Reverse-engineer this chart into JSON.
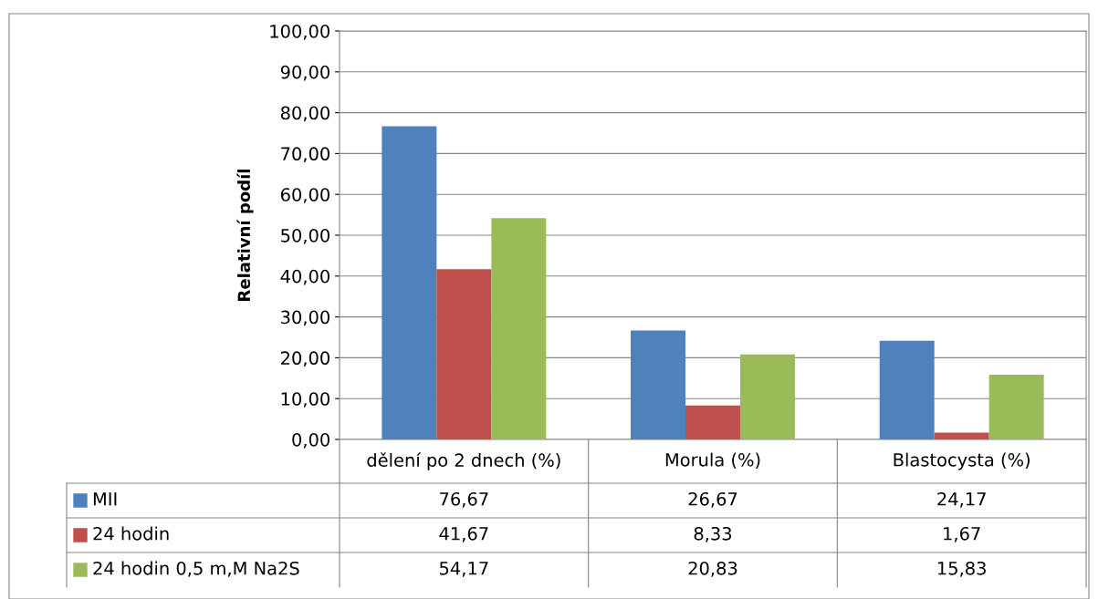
{
  "chart_data": {
    "type": "bar",
    "ylabel": "Relativní podíl",
    "categories": [
      "dělení po 2 dnech (%)",
      "Morula (%)",
      "Blastocysta (%)"
    ],
    "series": [
      {
        "name": "MII",
        "color": "#4f81bd",
        "values": [
          76.67,
          26.67,
          24.17
        ],
        "value_labels": [
          "76,67",
          "26,67",
          "24,17"
        ]
      },
      {
        "name": "24 hodin",
        "color": "#c0504d",
        "values": [
          41.67,
          8.33,
          1.67
        ],
        "value_labels": [
          "41,67",
          "8,33",
          "1,67"
        ]
      },
      {
        "name": "24 hodin 0,5 m,M Na2S",
        "color": "#9bbb59",
        "values": [
          54.17,
          20.83,
          15.83
        ],
        "value_labels": [
          "54,17",
          "20,83",
          "15,83"
        ]
      }
    ],
    "ylim": [
      0,
      100
    ],
    "yticks": [
      {
        "value": 0,
        "label": "0,00"
      },
      {
        "value": 10,
        "label": "10,00"
      },
      {
        "value": 20,
        "label": "20,00"
      },
      {
        "value": 30,
        "label": "30,00"
      },
      {
        "value": 40,
        "label": "40,00"
      },
      {
        "value": 50,
        "label": "50,00"
      },
      {
        "value": 60,
        "label": "60,00"
      },
      {
        "value": 70,
        "label": "70,00"
      },
      {
        "value": 80,
        "label": "80,00"
      },
      {
        "value": 90,
        "label": "90,00"
      },
      {
        "value": 100,
        "label": "100,00"
      }
    ],
    "grid": "y",
    "legend": "bottom"
  }
}
